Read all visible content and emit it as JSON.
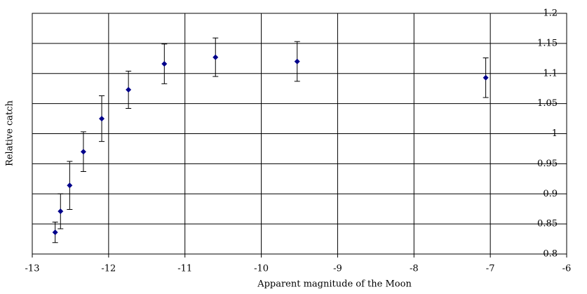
{
  "chart_data": {
    "type": "scatter",
    "x_label": "Apparent magnitude of the Moon",
    "y_label": "Relative catch",
    "x": [
      -12.7,
      -12.63,
      -12.51,
      -12.33,
      -12.09,
      -11.74,
      -11.27,
      -10.6,
      -9.53,
      -7.06
    ],
    "series": [
      {
        "color": "#00008b",
        "values": [
          0.836,
          0.871,
          0.914,
          0.97,
          1.025,
          1.073,
          1.116,
          1.127,
          1.12,
          1.093
        ],
        "errors": [
          0.017,
          0.029,
          0.04,
          0.033,
          0.038,
          0.031,
          0.033,
          0.032,
          0.033,
          0.033
        ]
      }
    ],
    "xlim": [
      -13,
      -6
    ],
    "xticks": [
      -13,
      -12,
      -11,
      -10,
      -9,
      -8,
      -7,
      -6
    ],
    "ylim": [
      0.8,
      1.2
    ],
    "yticks": [
      0.8,
      0.85,
      0.9,
      0.95,
      1,
      1.05,
      1.1,
      1.15,
      1.2
    ],
    "grid": true
  }
}
